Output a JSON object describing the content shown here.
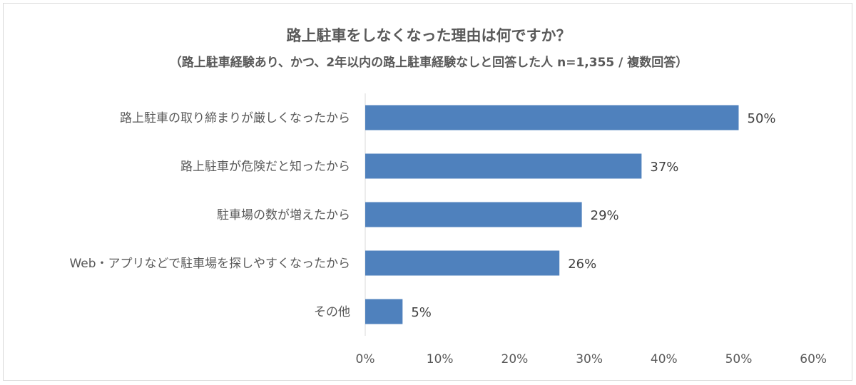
{
  "chart_data": {
    "type": "bar",
    "orientation": "horizontal",
    "title": "路上駐車をしなくなった理由は何ですか？",
    "subtitle": "（路上駐車経験あり、かつ、2年以内の路上駐車経験なしと回答した人 n=1,355 / 複数回答）",
    "categories": [
      "路上駐車の取り締まりが厳しくなったから",
      "路上駐車が危険だと知ったから",
      "駐車場の数が増えたから",
      "Web・アプリなどで駐車場を探しやすくなったから",
      "その他"
    ],
    "values": [
      50,
      37,
      29,
      26,
      5
    ],
    "value_labels": [
      "50%",
      "37%",
      "29%",
      "26%",
      "5%"
    ],
    "xlim": [
      0,
      60
    ],
    "x_ticks": [
      0,
      10,
      20,
      30,
      40,
      50,
      60
    ],
    "x_tick_labels": [
      "0%",
      "10%",
      "20%",
      "30%",
      "40%",
      "50%",
      "60%"
    ],
    "bar_color": "#4f81bd",
    "grid": false,
    "legend": "none"
  }
}
